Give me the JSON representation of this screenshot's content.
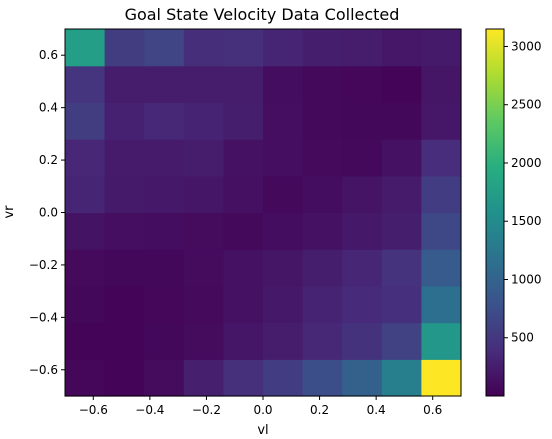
{
  "chart_data": {
    "type": "heatmap",
    "title": "Goal State Velocity Data Collected",
    "xlabel": "vl",
    "ylabel": "vr",
    "x_edges": [
      -0.7,
      -0.56,
      -0.42,
      -0.28,
      -0.14,
      0.0,
      0.14,
      0.28,
      0.42,
      0.56,
      0.7
    ],
    "y_edges": [
      -0.7,
      -0.56,
      -0.42,
      -0.28,
      -0.14,
      0.0,
      0.14,
      0.28,
      0.42,
      0.56,
      0.7
    ],
    "xlim": [
      -0.7,
      0.7
    ],
    "ylim": [
      -0.7,
      0.7
    ],
    "x_ticks": [
      -0.6,
      -0.4,
      -0.2,
      0.0,
      0.2,
      0.4,
      0.6
    ],
    "x_tick_labels": [
      "−0.6",
      "−0.4",
      "−0.2",
      "0.0",
      "0.2",
      "0.4",
      "0.6"
    ],
    "y_ticks": [
      -0.6,
      -0.4,
      -0.2,
      0.0,
      0.2,
      0.4,
      0.6
    ],
    "y_tick_labels": [
      "−0.6",
      "−0.4",
      "−0.2",
      "0.0",
      "0.2",
      "0.4",
      "0.6"
    ],
    "colormap": "viridis",
    "color_range": [
      0,
      3150
    ],
    "colorbar_ticks": [
      500,
      1000,
      1500,
      2000,
      2500,
      3000
    ],
    "colorbar_tick_labels": [
      "500",
      "1000",
      "1500",
      "2000",
      "2500",
      "3000"
    ],
    "values": [
      [
        50,
        30,
        100,
        270,
        430,
        560,
        750,
        960,
        1350,
        3150
      ],
      [
        30,
        40,
        60,
        90,
        190,
        250,
        350,
        450,
        620,
        1650
      ],
      [
        60,
        40,
        50,
        80,
        150,
        210,
        310,
        380,
        420,
        1150
      ],
      [
        80,
        60,
        60,
        90,
        140,
        180,
        260,
        330,
        460,
        900
      ],
      [
        160,
        120,
        110,
        90,
        70,
        110,
        150,
        210,
        260,
        680
      ],
      [
        320,
        220,
        210,
        190,
        130,
        70,
        110,
        170,
        230,
        560
      ],
      [
        340,
        230,
        230,
        250,
        150,
        120,
        80,
        70,
        140,
        390
      ],
      [
        550,
        290,
        350,
        310,
        260,
        120,
        70,
        60,
        60,
        200
      ],
      [
        470,
        250,
        250,
        240,
        240,
        110,
        70,
        50,
        30,
        180
      ],
      [
        1750,
        550,
        650,
        400,
        430,
        320,
        260,
        250,
        200,
        220
      ]
    ]
  }
}
